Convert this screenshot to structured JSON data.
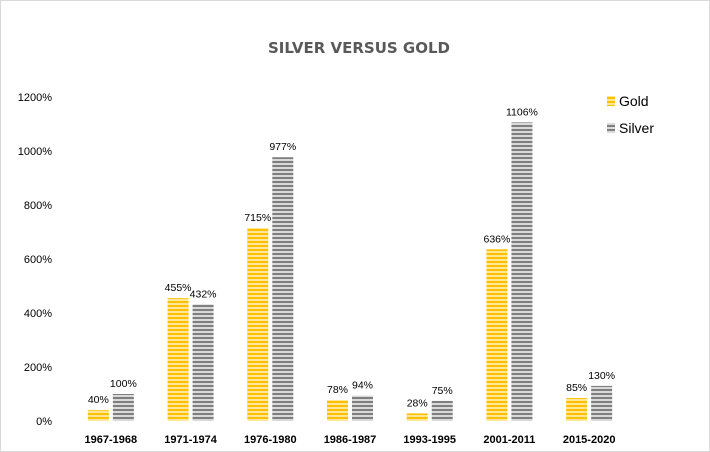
{
  "chart_data": {
    "type": "bar",
    "title": "SILVER VERSUS GOLD",
    "categories": [
      "1967-1968",
      "1971-1974",
      "1976-1980",
      "1986-1987",
      "1993-1995",
      "2001-2011",
      "2015-2020"
    ],
    "series": [
      {
        "name": "Gold",
        "values": [
          40,
          455,
          715,
          78,
          28,
          636,
          85
        ],
        "labels": [
          "40%",
          "455%",
          "715%",
          "78%",
          "28%",
          "636%",
          "85%"
        ],
        "color": "#FFC000",
        "stripe_color": "#FFE699"
      },
      {
        "name": "Silver",
        "values": [
          100,
          432,
          977,
          94,
          75,
          1106,
          130
        ],
        "labels": [
          "100%",
          "432%",
          "977%",
          "94%",
          "75%",
          "1106%",
          "130%"
        ],
        "color": "#7F7F7F",
        "stripe_color": "#D9D9D9"
      }
    ],
    "y_ticks": [
      "0%",
      "200%",
      "400%",
      "600%",
      "800%",
      "1000%",
      "1200%"
    ],
    "ylim": [
      0,
      1200
    ],
    "xlabel": "",
    "ylabel": "",
    "grid": false,
    "legend_position": "top-right"
  }
}
